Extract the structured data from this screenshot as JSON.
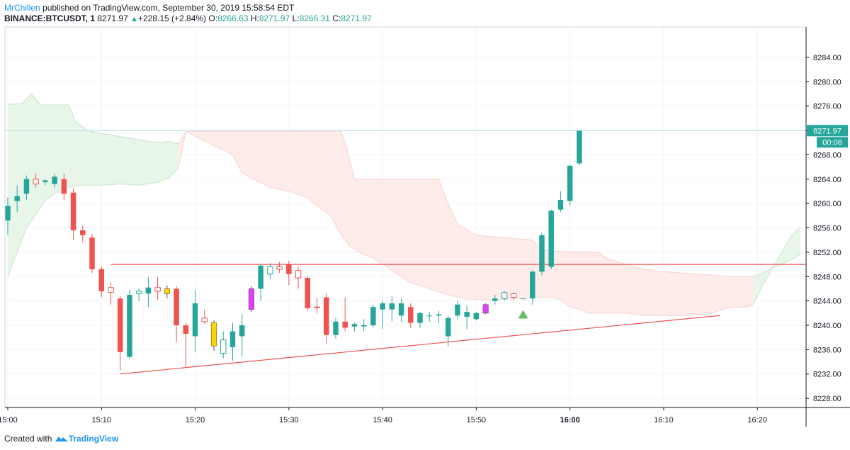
{
  "publication": {
    "author": "MrChillen",
    "text": "published on TradingView.com, September 30, 2019 15:58:54 EDT"
  },
  "legend": {
    "symbol": "BINANCE:BTCUSDT, 1",
    "last": "8271.97",
    "change_arrow": "▲",
    "change": "+228.15 (+2.84%)",
    "o_label": "O:",
    "o_value": "8266.63",
    "h_label": "H:",
    "h_value": "8271.97",
    "l_label": "L:",
    "l_value": "8266.31",
    "c_label": "C:",
    "c_value": "8271.97"
  },
  "footer": {
    "created_with": "Created with",
    "brand": "TradingView",
    "logo_icon": "tradingview-logo-icon"
  },
  "price_tag": {
    "price": "8271.97",
    "countdown": "00:08"
  },
  "colors": {
    "bull": "#26a69a",
    "bear": "#ef5350",
    "magenta": "#e040fb",
    "yellow": "#ffd600",
    "hollow_bull": "#26a69a",
    "hollow_bear": "#ef5350",
    "cloud_green": "#e8f5e9",
    "cloud_red": "#fdecea",
    "trendline": "#ef5350",
    "grid": "#f0f3fa",
    "current_price": "#26a69a"
  },
  "chart_data": {
    "type": "candlestick",
    "symbol": "BINANCE:BTCUSDT",
    "interval": "1",
    "x_ticks": [
      "15:00",
      "15:10",
      "15:20",
      "15:30",
      "15:40",
      "15:50",
      "16:00",
      "16:10",
      "16:20"
    ],
    "y_ticks": [
      "8228.00",
      "8232.00",
      "8236.00",
      "8240.00",
      "8244.00",
      "8248.00",
      "8252.00",
      "8256.00",
      "8260.00",
      "8264.00",
      "8268.00",
      "8272.00",
      "8276.00",
      "8280.00",
      "8284.00"
    ],
    "xlim_minutes": [
      -0.3,
      85.2
    ],
    "ylim": [
      8226.5,
      8289.0
    ],
    "grid": true,
    "candles": [
      {
        "t": 0,
        "o": 8257.2,
        "h": 8261.0,
        "l": 8254.8,
        "c": 8259.6,
        "style": "bull"
      },
      {
        "t": 1,
        "o": 8260.4,
        "h": 8263.0,
        "l": 8258.6,
        "c": 8261.2,
        "style": "bull"
      },
      {
        "t": 2,
        "o": 8261.6,
        "h": 8264.6,
        "l": 8260.6,
        "c": 8264.0,
        "style": "bull"
      },
      {
        "t": 3,
        "o": 8264.0,
        "h": 8264.9,
        "l": 8262.6,
        "c": 8263.2,
        "style": "hollow_bear"
      },
      {
        "t": 4,
        "o": 8263.5,
        "h": 8264.0,
        "l": 8263.0,
        "c": 8263.8,
        "style": "bull"
      },
      {
        "t": 5,
        "o": 8263.2,
        "h": 8264.9,
        "l": 8262.6,
        "c": 8264.4,
        "style": "bull"
      },
      {
        "t": 6,
        "o": 8264.0,
        "h": 8264.9,
        "l": 8260.6,
        "c": 8261.6,
        "style": "bear"
      },
      {
        "t": 7,
        "o": 8261.8,
        "h": 8262.5,
        "l": 8254.0,
        "c": 8255.6,
        "style": "bear"
      },
      {
        "t": 8,
        "o": 8255.6,
        "h": 8256.4,
        "l": 8253.6,
        "c": 8254.8,
        "style": "bear"
      },
      {
        "t": 9,
        "o": 8254.4,
        "h": 8255.0,
        "l": 8248.6,
        "c": 8249.2,
        "style": "bear"
      },
      {
        "t": 10,
        "o": 8249.2,
        "h": 8249.6,
        "l": 8244.6,
        "c": 8245.6,
        "style": "bear"
      },
      {
        "t": 11,
        "o": 8246.2,
        "h": 8247.0,
        "l": 8243.4,
        "c": 8245.4,
        "style": "hollow_bear"
      },
      {
        "t": 12,
        "o": 8244.4,
        "h": 8244.8,
        "l": 8232.6,
        "c": 8235.6,
        "style": "bear"
      },
      {
        "t": 13,
        "o": 8234.8,
        "h": 8245.8,
        "l": 8234.4,
        "c": 8245.0,
        "style": "bull"
      },
      {
        "t": 14,
        "o": 8245.2,
        "h": 8246.0,
        "l": 8244.0,
        "c": 8245.6,
        "style": "hollow_bull"
      },
      {
        "t": 15,
        "o": 8245.2,
        "h": 8247.9,
        "l": 8243.0,
        "c": 8246.2,
        "style": "bull"
      },
      {
        "t": 16,
        "o": 8245.6,
        "h": 8247.9,
        "l": 8244.2,
        "c": 8246.2,
        "style": "hollow_bear"
      },
      {
        "t": 17,
        "o": 8246.0,
        "h": 8246.6,
        "l": 8244.4,
        "c": 8245.2,
        "style": "yellow"
      },
      {
        "t": 18,
        "o": 8246.0,
        "h": 8246.4,
        "l": 8237.2,
        "c": 8240.0,
        "style": "bear"
      },
      {
        "t": 19,
        "o": 8240.0,
        "h": 8240.4,
        "l": 8233.2,
        "c": 8238.6,
        "style": "bear"
      },
      {
        "t": 20,
        "o": 8238.2,
        "h": 8245.8,
        "l": 8235.6,
        "c": 8243.6,
        "style": "bull"
      },
      {
        "t": 21,
        "o": 8240.6,
        "h": 8242.6,
        "l": 8240.2,
        "c": 8241.2,
        "style": "hollow_bear"
      },
      {
        "t": 22,
        "o": 8240.4,
        "h": 8240.8,
        "l": 8235.8,
        "c": 8236.6,
        "style": "yellow"
      },
      {
        "t": 23,
        "o": 8235.4,
        "h": 8239.0,
        "l": 8234.6,
        "c": 8237.6,
        "style": "hollow_bull"
      },
      {
        "t": 24,
        "o": 8236.4,
        "h": 8240.4,
        "l": 8234.2,
        "c": 8239.0,
        "style": "bull"
      },
      {
        "t": 25,
        "o": 8238.2,
        "h": 8241.8,
        "l": 8235.0,
        "c": 8240.0,
        "style": "bull"
      },
      {
        "t": 26,
        "o": 8242.6,
        "h": 8246.4,
        "l": 8242.2,
        "c": 8246.0,
        "style": "magenta"
      },
      {
        "t": 27,
        "o": 8246.0,
        "h": 8250.0,
        "l": 8244.0,
        "c": 8249.8,
        "style": "bull"
      },
      {
        "t": 28,
        "o": 8248.4,
        "h": 8250.2,
        "l": 8247.6,
        "c": 8249.6,
        "style": "hollow_bull"
      },
      {
        "t": 29,
        "o": 8249.6,
        "h": 8250.4,
        "l": 8248.6,
        "c": 8249.2,
        "style": "hollow_bear"
      },
      {
        "t": 30,
        "o": 8250.0,
        "h": 8250.6,
        "l": 8246.6,
        "c": 8248.4,
        "style": "bear"
      },
      {
        "t": 31,
        "o": 8249.0,
        "h": 8249.6,
        "l": 8246.0,
        "c": 8247.8,
        "style": "hollow_bear"
      },
      {
        "t": 32,
        "o": 8247.8,
        "h": 8248.0,
        "l": 8242.4,
        "c": 8242.8,
        "style": "bear"
      },
      {
        "t": 33,
        "o": 8243.0,
        "h": 8244.4,
        "l": 8242.0,
        "c": 8243.0,
        "style": "hollow_bear"
      },
      {
        "t": 34,
        "o": 8244.6,
        "h": 8245.2,
        "l": 8237.0,
        "c": 8238.4,
        "style": "bear"
      },
      {
        "t": 35,
        "o": 8238.4,
        "h": 8241.2,
        "l": 8237.8,
        "c": 8240.6,
        "style": "bull"
      },
      {
        "t": 36,
        "o": 8240.6,
        "h": 8244.6,
        "l": 8239.0,
        "c": 8239.6,
        "style": "bear"
      },
      {
        "t": 37,
        "o": 8239.8,
        "h": 8240.4,
        "l": 8239.0,
        "c": 8240.2,
        "style": "bull"
      },
      {
        "t": 38,
        "o": 8239.8,
        "h": 8241.0,
        "l": 8239.0,
        "c": 8240.0,
        "style": "bull"
      },
      {
        "t": 39,
        "o": 8240.0,
        "h": 8243.4,
        "l": 8239.6,
        "c": 8243.0,
        "style": "bull"
      },
      {
        "t": 40,
        "o": 8242.6,
        "h": 8244.0,
        "l": 8239.4,
        "c": 8243.6,
        "style": "bull"
      },
      {
        "t": 41,
        "o": 8242.6,
        "h": 8244.8,
        "l": 8240.6,
        "c": 8243.6,
        "style": "bull"
      },
      {
        "t": 42,
        "o": 8243.6,
        "h": 8244.4,
        "l": 8240.6,
        "c": 8241.6,
        "style": "bull"
      },
      {
        "t": 43,
        "o": 8243.0,
        "h": 8243.6,
        "l": 8239.6,
        "c": 8240.4,
        "style": "bear"
      },
      {
        "t": 44,
        "o": 8240.4,
        "h": 8242.2,
        "l": 8239.6,
        "c": 8242.0,
        "style": "bull"
      },
      {
        "t": 45,
        "o": 8241.6,
        "h": 8242.2,
        "l": 8240.6,
        "c": 8241.6,
        "style": "bull"
      },
      {
        "t": 46,
        "o": 8241.6,
        "h": 8242.4,
        "l": 8240.4,
        "c": 8241.8,
        "style": "bull"
      },
      {
        "t": 47,
        "o": 8238.2,
        "h": 8241.6,
        "l": 8236.6,
        "c": 8241.2,
        "style": "bull"
      },
      {
        "t": 48,
        "o": 8241.6,
        "h": 8244.0,
        "l": 8241.0,
        "c": 8243.4,
        "style": "bull"
      },
      {
        "t": 49,
        "o": 8241.4,
        "h": 8243.2,
        "l": 8239.4,
        "c": 8242.2,
        "style": "bull"
      },
      {
        "t": 50,
        "o": 8241.0,
        "h": 8242.2,
        "l": 8240.8,
        "c": 8242.0,
        "style": "bull"
      },
      {
        "t": 51,
        "o": 8242.0,
        "h": 8243.6,
        "l": 8241.8,
        "c": 8243.4,
        "style": "magenta"
      },
      {
        "t": 52,
        "o": 8244.0,
        "h": 8245.0,
        "l": 8243.4,
        "c": 8244.4,
        "style": "bull"
      },
      {
        "t": 53,
        "o": 8244.4,
        "h": 8245.6,
        "l": 8244.0,
        "c": 8245.4,
        "style": "hollow_bull"
      },
      {
        "t": 54,
        "o": 8244.6,
        "h": 8245.4,
        "l": 8244.2,
        "c": 8245.2,
        "style": "hollow_bear"
      },
      {
        "t": 55,
        "o": 8244.4,
        "h": 8244.4,
        "l": 8244.4,
        "c": 8244.4,
        "style": "bull"
      },
      {
        "t": 56,
        "o": 8244.4,
        "h": 8249.0,
        "l": 8243.4,
        "c": 8248.8,
        "style": "bull"
      },
      {
        "t": 57,
        "o": 8248.8,
        "h": 8255.2,
        "l": 8248.2,
        "c": 8254.8,
        "style": "bull"
      },
      {
        "t": 58,
        "o": 8249.6,
        "h": 8259.0,
        "l": 8249.2,
        "c": 8258.8,
        "style": "bull"
      },
      {
        "t": 59,
        "o": 8259.0,
        "h": 8262.0,
        "l": 8258.6,
        "c": 8260.6,
        "style": "bull"
      },
      {
        "t": 60,
        "o": 8260.4,
        "h": 8266.4,
        "l": 8259.6,
        "c": 8266.2,
        "style": "bull"
      },
      {
        "t": 61,
        "o": 8266.6,
        "h": 8271.97,
        "l": 8266.31,
        "c": 8271.97,
        "style": "bull"
      }
    ],
    "ichimoku_cloud": {
      "green_region": {
        "span_a": [
          [
            0,
            8248.0
          ],
          [
            2,
            8256.0
          ],
          [
            4,
            8260.5
          ],
          [
            6,
            8262.6
          ],
          [
            8,
            8263.0
          ],
          [
            10,
            8263.0
          ],
          [
            12,
            8263.2
          ],
          [
            14,
            8263.0
          ],
          [
            16,
            8263.5
          ],
          [
            17.2,
            8264.2
          ],
          [
            18.2,
            8265.8
          ]
        ],
        "span_b": [
          [
            0,
            8276.3
          ],
          [
            1.5,
            8276.4
          ],
          [
            2.5,
            8278.0
          ],
          [
            3.5,
            8276.2
          ],
          [
            6.5,
            8276.2
          ],
          [
            7.2,
            8273.5
          ],
          [
            8.5,
            8272.0
          ],
          [
            10,
            8271.5
          ],
          [
            12,
            8271.0
          ],
          [
            14,
            8270.5
          ],
          [
            16,
            8270.0
          ],
          [
            17.2,
            8270.2
          ],
          [
            18.2,
            8269.8
          ]
        ]
      },
      "red_region": {
        "span_a": [
          [
            18.2,
            8265.8
          ],
          [
            19,
            8271.8
          ],
          [
            24,
            8268.0
          ],
          [
            25,
            8265.0
          ],
          [
            26,
            8264.2
          ],
          [
            28,
            8262.6
          ],
          [
            30,
            8262.0
          ],
          [
            32,
            8261.0
          ],
          [
            33.5,
            8259.0
          ],
          [
            34.5,
            8258.0
          ],
          [
            35.5,
            8255.0
          ],
          [
            36.5,
            8253.0
          ],
          [
            37.5,
            8252.0
          ],
          [
            39,
            8251.0
          ],
          [
            41,
            8249.0
          ],
          [
            43,
            8247.0
          ],
          [
            45,
            8246.0
          ],
          [
            47,
            8245.0
          ],
          [
            49,
            8244.3
          ],
          [
            52,
            8244.2
          ],
          [
            54,
            8244.3
          ],
          [
            56,
            8244.6
          ],
          [
            58,
            8244.6
          ],
          [
            59,
            8244.2
          ],
          [
            60,
            8243.0
          ],
          [
            61,
            8242.6
          ],
          [
            62,
            8242.0
          ],
          [
            63.5,
            8242.0
          ],
          [
            66,
            8242.0
          ],
          [
            68,
            8241.6
          ],
          [
            69.5,
            8241.6
          ],
          [
            72,
            8241.6
          ],
          [
            75,
            8241.9
          ],
          [
            76,
            8242.5
          ],
          [
            77.5,
            8243.0
          ],
          [
            79,
            8243.0
          ],
          [
            79.6,
            8243.5
          ]
        ],
        "span_b": [
          [
            18.2,
            8269.8
          ],
          [
            19,
            8271.8
          ],
          [
            35.6,
            8271.8
          ],
          [
            36.2,
            8269.0
          ],
          [
            37,
            8264.0
          ],
          [
            46,
            8264.0
          ],
          [
            47,
            8260.0
          ],
          [
            48,
            8256.6
          ],
          [
            50,
            8254.8
          ],
          [
            56,
            8254.0
          ],
          [
            57,
            8252.4
          ],
          [
            60,
            8252.0
          ],
          [
            63,
            8252.0
          ],
          [
            64,
            8251.0
          ],
          [
            66,
            8250.0
          ],
          [
            68,
            8249.2
          ],
          [
            70,
            8248.8
          ],
          [
            74,
            8248.4
          ],
          [
            77,
            8248.0
          ],
          [
            79.6,
            8248.0
          ]
        ]
      },
      "green_region_2": {
        "span_a": [
          [
            79.6,
            8243.5
          ],
          [
            80.6,
            8246.6
          ],
          [
            81.6,
            8249.4
          ],
          [
            82.6,
            8252.0
          ],
          [
            83.6,
            8254.6
          ],
          [
            84.6,
            8256.2
          ]
        ],
        "span_b": [
          [
            79.6,
            8248.0
          ],
          [
            80.6,
            8248.6
          ],
          [
            81.6,
            8249.4
          ],
          [
            82.6,
            8250.0
          ],
          [
            83.6,
            8250.8
          ],
          [
            84.6,
            8251.6
          ]
        ]
      }
    },
    "horizontal_line": {
      "price": 8250.0,
      "from_t": 11,
      "to_t": 85.2
    },
    "trendline": {
      "from": [
        12.0,
        8232.0
      ],
      "to": [
        76.0,
        8241.6
      ]
    },
    "buy_marker": {
      "t": 55,
      "price": 8241.8
    },
    "current_price": 8271.97
  }
}
